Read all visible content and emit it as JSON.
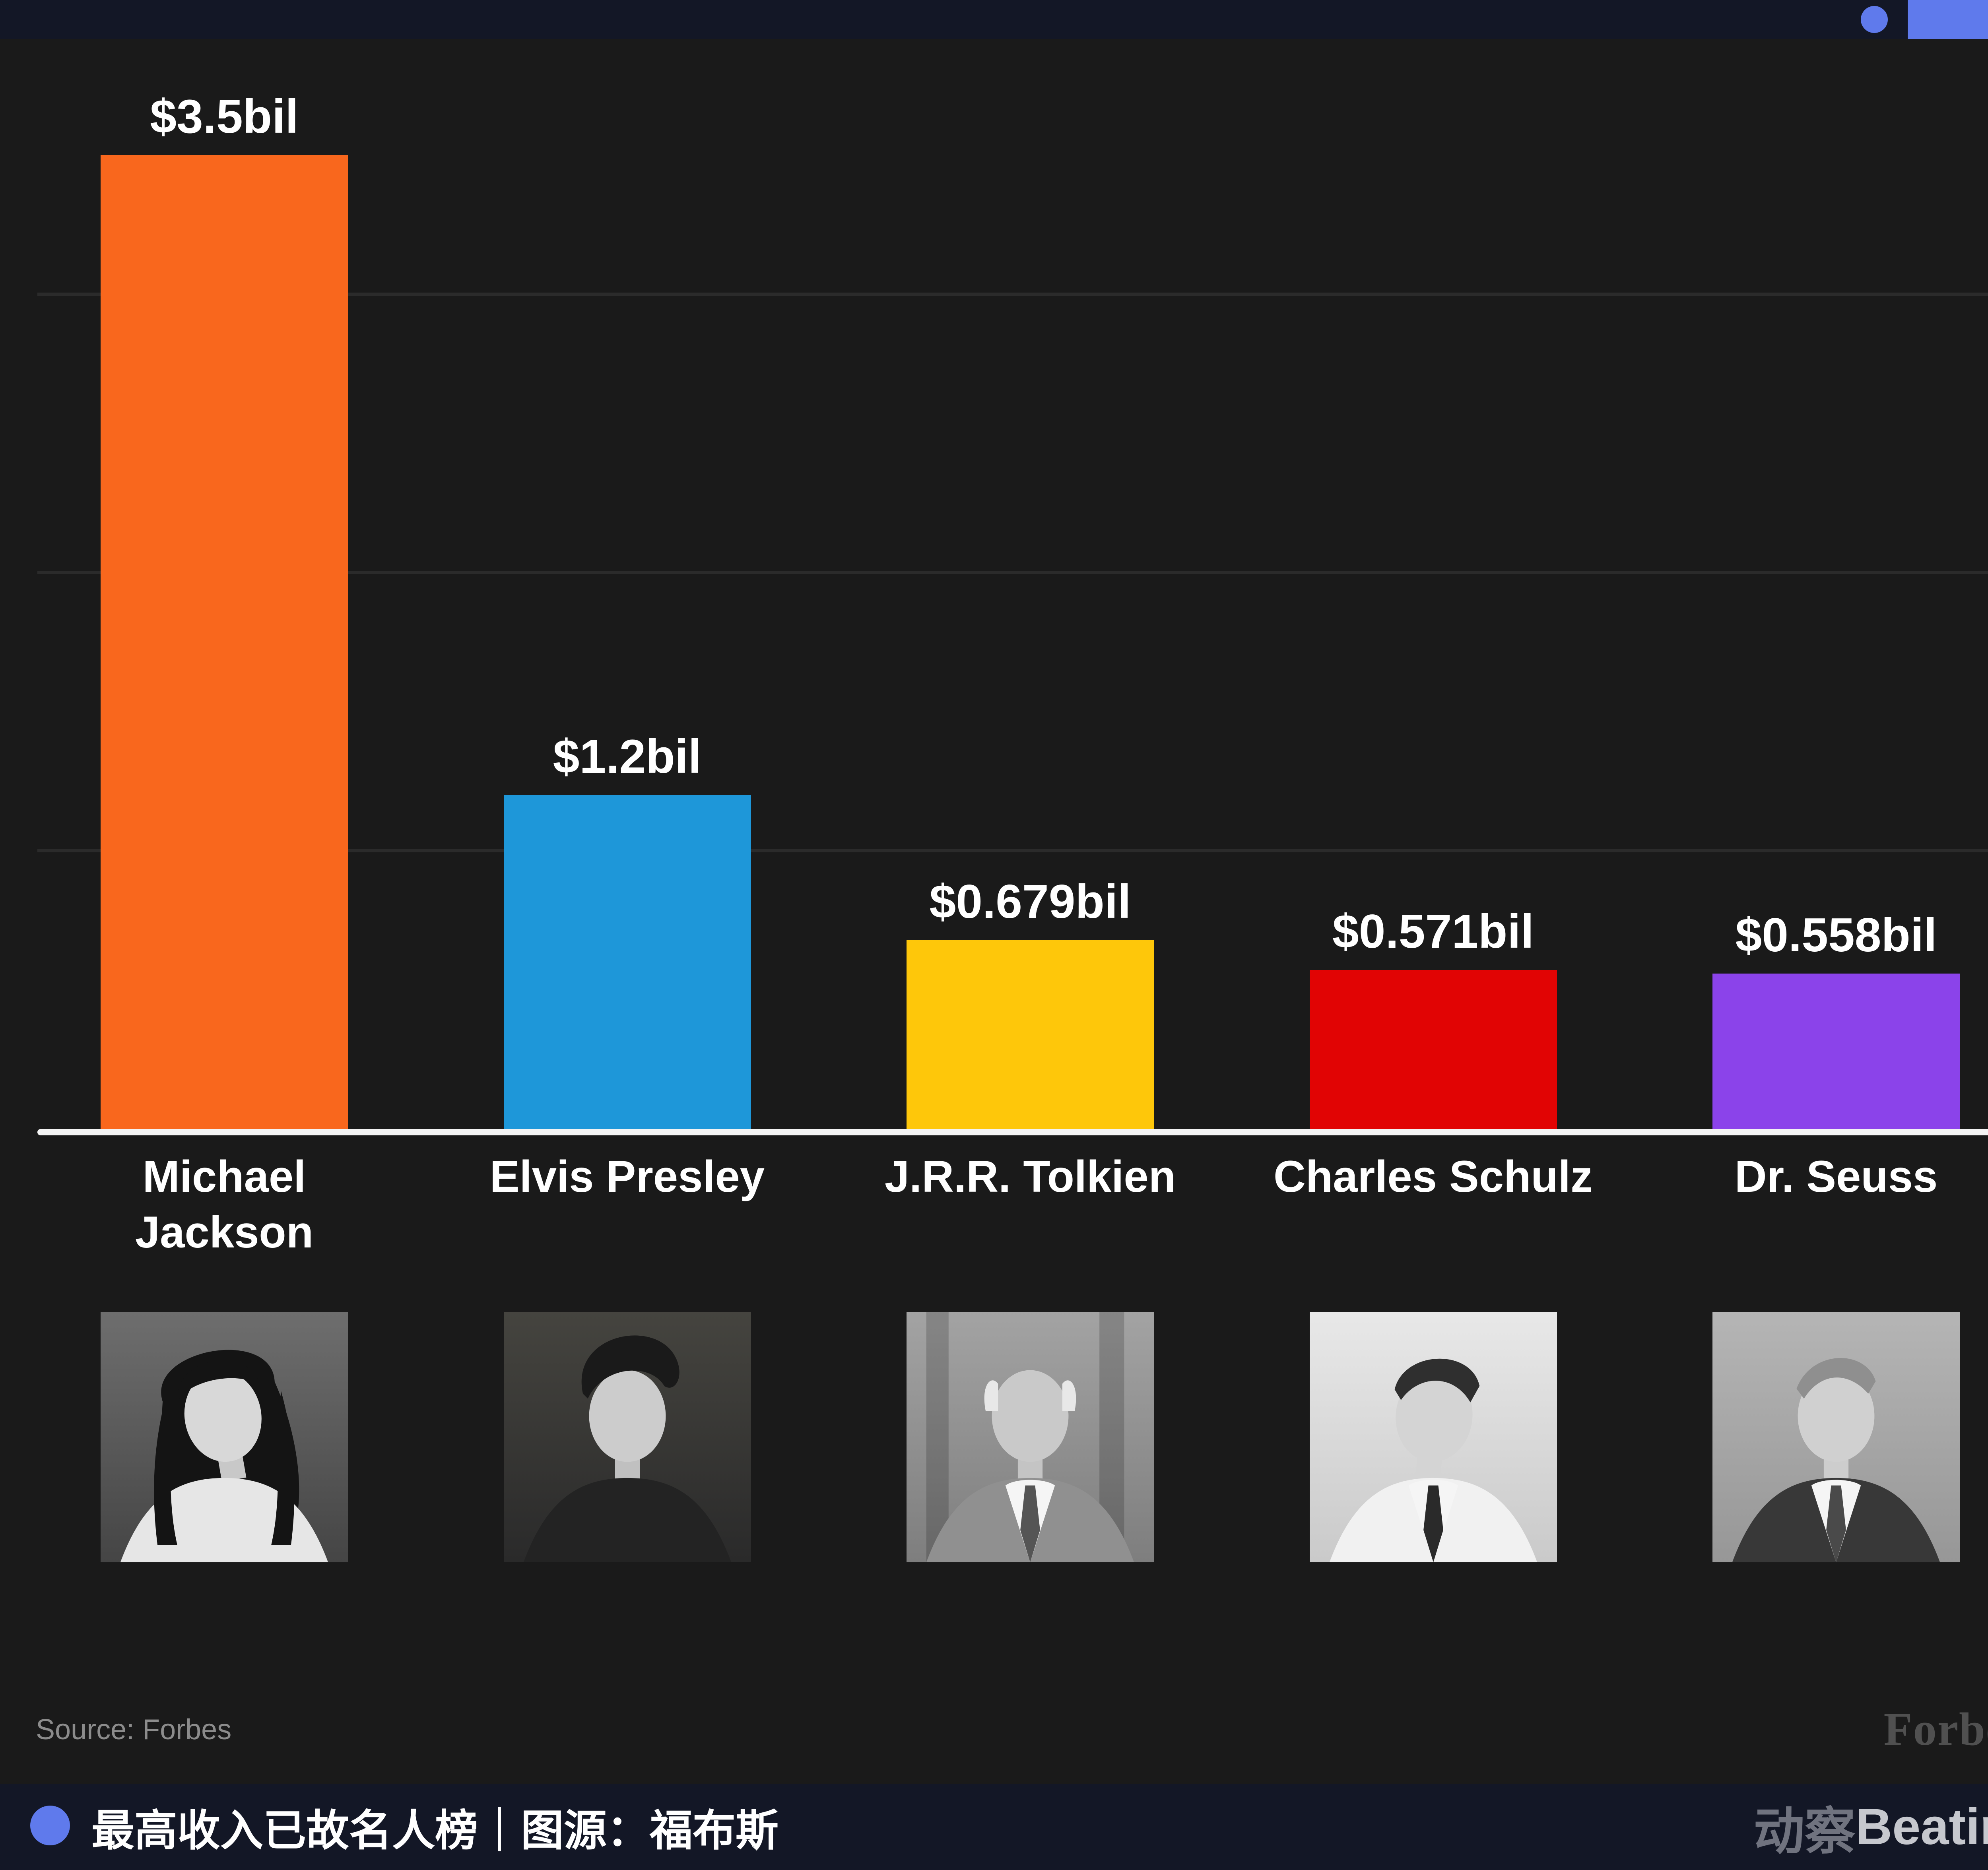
{
  "page": {
    "background": "#1A1A1A",
    "band_color": "#131726",
    "accent_color": "#5F7AEC"
  },
  "chart_data": {
    "type": "bar",
    "title": "最高收入已故名人榜",
    "categories": [
      "Michael Jackson",
      "Elvis Presley",
      "J.R.R. Tolkien",
      "Charles Schulz",
      "Dr. Seuss"
    ],
    "category_lines": [
      [
        "Michael",
        "Jackson"
      ],
      [
        "Elvis Presley"
      ],
      [
        "J.R.R. Tolkien"
      ],
      [
        "Charles Schulz"
      ],
      [
        "Dr. Seuss"
      ]
    ],
    "values": [
      3.5,
      1.2,
      0.679,
      0.571,
      0.558
    ],
    "value_labels": [
      "$3.5bil",
      "$1.2bil",
      "$0.679bil",
      "$0.571bil",
      "$0.558bil"
    ],
    "bar_colors": [
      "#F9671D",
      "#1E97D9",
      "#FEC70A",
      "#E10404",
      "#8B43EA"
    ],
    "portraits": [
      "michael-jackson",
      "elvis-presley",
      "jrr-tolkien",
      "charles-schulz",
      "dr-seuss"
    ],
    "unit": "billions USD",
    "ylim": [
      0,
      3.6
    ],
    "gridline_values": [
      1,
      2,
      3
    ],
    "grid": "horizontal, unlabeled ticks",
    "legend": "none",
    "axis_color": "#F4F4F4",
    "source": "Forbes"
  },
  "source_note": "Source: Forbes",
  "brand_logo": "Forbes",
  "footer": {
    "caption": "最高收入已故名人榜｜图源：福布斯",
    "watermark_cn": "动察",
    "watermark_en": "Beating"
  }
}
